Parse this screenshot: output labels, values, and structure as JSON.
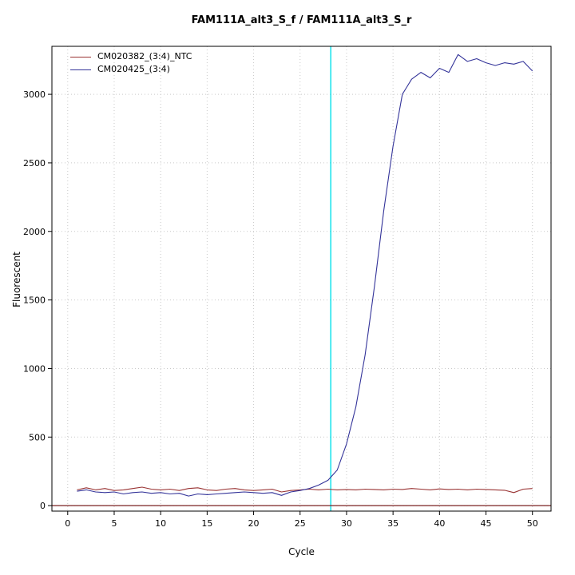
{
  "title": "FAM111A_alt3_S_f / FAM111A_alt3_S_r",
  "chart_data": {
    "type": "line",
    "title": "FAM111A_alt3_S_f / FAM111A_alt3_S_r",
    "xlabel": "Cycle",
    "ylabel": "Fluorescent",
    "xlim": [
      -1.7,
      52
    ],
    "ylim": [
      -40,
      3350
    ],
    "xticks": [
      0,
      5,
      10,
      15,
      20,
      25,
      30,
      35,
      40,
      45,
      50
    ],
    "yticks": [
      0,
      500,
      1000,
      1500,
      2000,
      2500,
      3000
    ],
    "grid": true,
    "grid_color": "#c9c9c9",
    "legend_position": "top-left",
    "x": [
      1,
      2,
      3,
      4,
      5,
      6,
      7,
      8,
      9,
      10,
      11,
      12,
      13,
      14,
      15,
      16,
      17,
      18,
      19,
      20,
      21,
      22,
      23,
      24,
      25,
      26,
      27,
      28,
      29,
      30,
      31,
      32,
      33,
      34,
      35,
      36,
      37,
      38,
      39,
      40,
      41,
      42,
      43,
      44,
      45,
      46,
      47,
      48,
      49,
      50
    ],
    "series": [
      {
        "name": "CM020382_(3:4)_NTC",
        "color": "#993333",
        "values": [
          115,
          130,
          115,
          125,
          110,
          115,
          125,
          135,
          120,
          115,
          120,
          110,
          125,
          130,
          115,
          110,
          120,
          125,
          115,
          110,
          115,
          120,
          100,
          110,
          115,
          120,
          115,
          120,
          115,
          118,
          115,
          120,
          118,
          115,
          120,
          118,
          125,
          120,
          115,
          122,
          118,
          120,
          115,
          120,
          118,
          115,
          112,
          95,
          120,
          125
        ]
      },
      {
        "name": "CM020425_(3:4)",
        "color": "#333399",
        "values": [
          105,
          115,
          100,
          95,
          100,
          85,
          95,
          100,
          90,
          95,
          85,
          90,
          70,
          85,
          80,
          85,
          90,
          95,
          100,
          95,
          90,
          95,
          75,
          100,
          110,
          125,
          150,
          185,
          260,
          450,
          720,
          1100,
          1600,
          2150,
          2620,
          3000,
          3110,
          3160,
          3120,
          3190,
          3160,
          3290,
          3240,
          3260,
          3230,
          3210,
          3230,
          3220,
          3240,
          3170
        ]
      }
    ],
    "threshold_line": {
      "y": 0,
      "color": "#7b2020"
    },
    "crossing_line": {
      "x": 28.3,
      "color": "#00e0ea"
    },
    "axis_color": "#000000"
  }
}
